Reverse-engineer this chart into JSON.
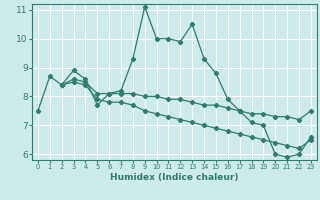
{
  "xlabel": "Humidex (Indice chaleur)",
  "bg_color": "#ceeaea",
  "grid_color": "#b8d8d8",
  "line_color": "#2e7d6e",
  "line1": {
    "x": [
      0,
      1,
      2,
      3,
      4,
      5,
      6,
      7,
      8,
      9,
      10,
      11,
      12,
      13,
      14,
      15,
      16,
      17,
      18,
      19,
      20,
      21,
      22,
      23
    ],
    "y": [
      7.5,
      8.7,
      8.4,
      8.9,
      8.6,
      7.7,
      8.1,
      8.2,
      9.3,
      11.1,
      10.0,
      10.0,
      9.9,
      10.5,
      9.3,
      8.8,
      7.9,
      7.5,
      7.1,
      7.0,
      6.0,
      5.9,
      6.0,
      6.6
    ]
  },
  "line2": {
    "x": [
      2,
      3,
      4,
      5,
      6,
      7,
      8,
      9,
      10,
      11,
      12,
      13,
      14,
      15,
      16,
      17,
      18,
      19,
      20,
      21,
      22,
      23
    ],
    "y": [
      8.4,
      8.6,
      8.5,
      8.1,
      8.1,
      8.1,
      8.1,
      8.0,
      8.0,
      7.9,
      7.9,
      7.8,
      7.7,
      7.7,
      7.6,
      7.5,
      7.4,
      7.4,
      7.3,
      7.3,
      7.2,
      7.5
    ]
  },
  "line3": {
    "x": [
      2,
      3,
      4,
      5,
      6,
      7,
      8,
      9,
      10,
      11,
      12,
      13,
      14,
      15,
      16,
      17,
      18,
      19,
      20,
      21,
      22,
      23
    ],
    "y": [
      8.4,
      8.5,
      8.4,
      7.9,
      7.8,
      7.8,
      7.7,
      7.5,
      7.4,
      7.3,
      7.2,
      7.1,
      7.0,
      6.9,
      6.8,
      6.7,
      6.6,
      6.5,
      6.4,
      6.3,
      6.2,
      6.5
    ]
  },
  "xlim": [
    -0.5,
    23.5
  ],
  "ylim": [
    5.8,
    11.2
  ],
  "yticks": [
    6,
    7,
    8,
    9,
    10,
    11
  ],
  "xticks": [
    0,
    1,
    2,
    3,
    4,
    5,
    6,
    7,
    8,
    9,
    10,
    11,
    12,
    13,
    14,
    15,
    16,
    17,
    18,
    19,
    20,
    21,
    22,
    23
  ]
}
